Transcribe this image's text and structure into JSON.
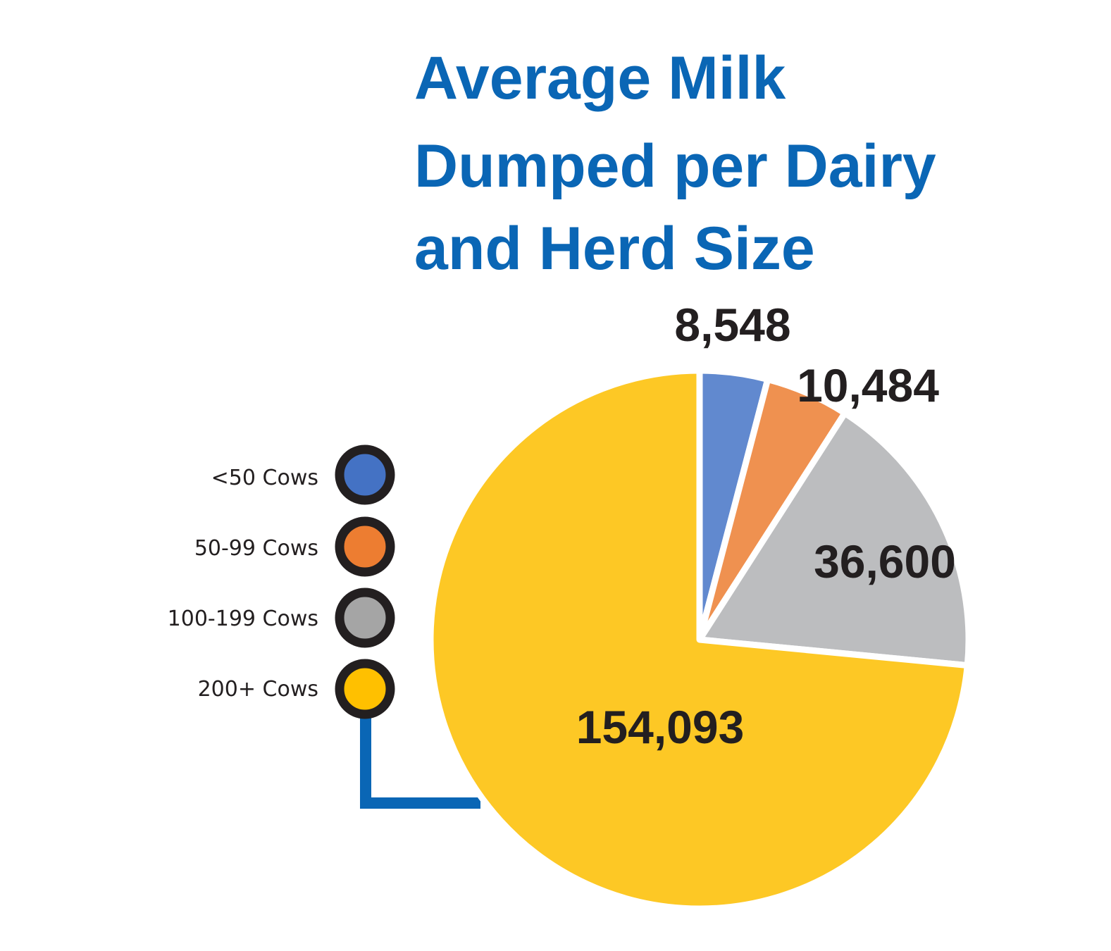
{
  "chart_data": {
    "type": "pie",
    "title_lines": [
      "Average Milk",
      "Dumped per Dairy",
      "and Herd Size"
    ],
    "categories": [
      "<50 Cows",
      "50-99 Cows",
      "100-199 Cows",
      "200+ Cows"
    ],
    "values": [
      8548,
      10484,
      36600,
      154093
    ],
    "value_labels": [
      "8,548",
      "10,484",
      "36,600",
      "154,093"
    ],
    "legend_colors": [
      "#4472c4",
      "#ed7d31",
      "#a5a5a5",
      "#ffc000"
    ],
    "slice_colors": [
      "#6189cf",
      "#ef9150",
      "#bcbdbf",
      "#fdc825"
    ],
    "emphasized_category": "200+ Cows",
    "legend_placement": "left",
    "start_angle_deg": 0,
    "direction": "clockwise"
  },
  "colors": {
    "title": "#0a66b5",
    "connector": "#0a66b5",
    "text": "#231f20",
    "ring": "#231f20",
    "separator": "#ffffff"
  }
}
